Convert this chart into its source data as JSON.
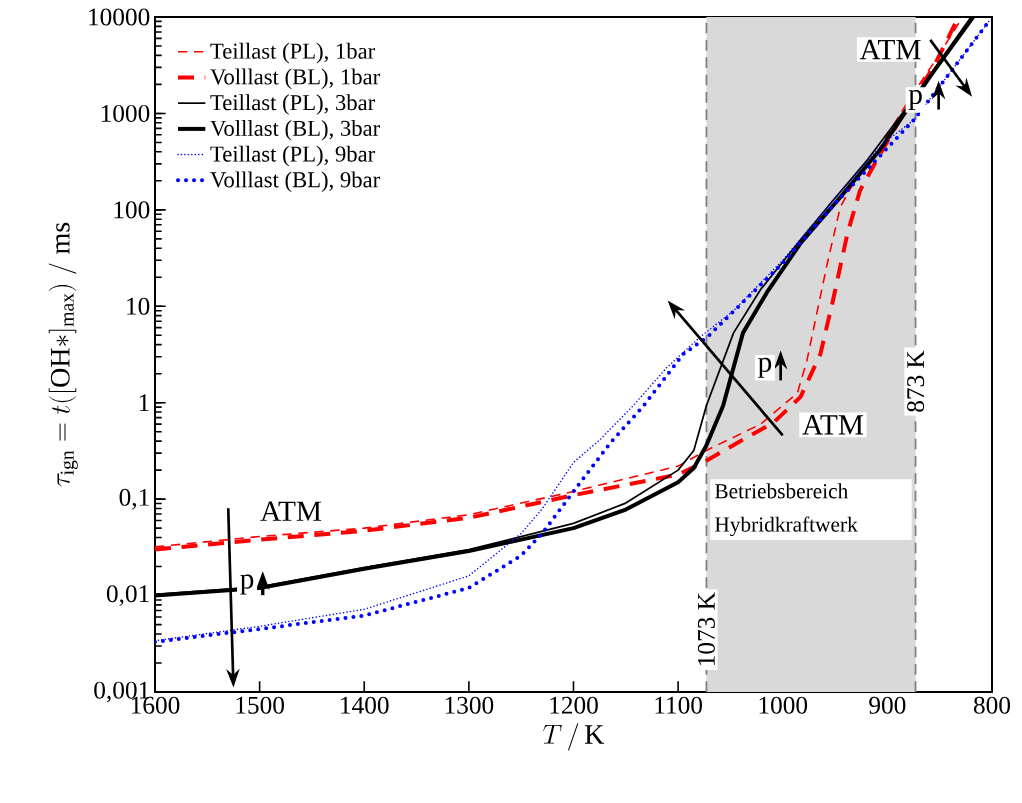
{
  "chart_data": {
    "type": "line",
    "xlabel": "T\\,/\\,\\mathrm{K}",
    "ylabel": "\\tau_{\\mathrm{ign}} = t([\\mathrm{OH*}]_{\\mathrm{max}})\\;/\\;\\mathrm{ms}",
    "xlim": [
      1600,
      800
    ],
    "xticks": [
      1600,
      1500,
      1400,
      1300,
      1200,
      1100,
      1000,
      900,
      800
    ],
    "ylim": [
      0.001,
      10000
    ],
    "yticks": [
      {
        "value": 0.001,
        "label": "0,001"
      },
      {
        "value": 0.01,
        "label": "0,01"
      },
      {
        "value": 0.1,
        "label": "0,1"
      },
      1,
      10,
      100,
      1000,
      10000
    ],
    "log": true,
    "legend": "top left",
    "series": [
      {
        "name": "Teillast (PL), 1bar",
        "color": "#ff0000",
        "line_style": "dashed",
        "x": [
          1600,
          1500,
          1400,
          1300,
          1200,
          1100,
          1073,
          1021,
          986,
          977,
          958,
          945,
          929,
          910,
          881,
          856,
          828
        ],
        "values": [
          0.032,
          0.041,
          0.05,
          0.069,
          0.12,
          0.22,
          0.32,
          0.6,
          1.26,
          2.7,
          26,
          107,
          220,
          390,
          1300,
          3300,
          10000
        ]
      },
      {
        "name": "Volllast (BL), 1bar",
        "color": "#ff0000",
        "line_style": "dashed",
        "x": [
          1600,
          1500,
          1400,
          1300,
          1200,
          1100,
          1073,
          1044,
          1009,
          983,
          964,
          952,
          938,
          926,
          910,
          881,
          856,
          832
        ],
        "values": [
          0.03,
          0.038,
          0.047,
          0.064,
          0.11,
          0.18,
          0.25,
          0.38,
          0.62,
          1.15,
          3.2,
          11.5,
          58,
          160,
          330,
          1170,
          3000,
          10000
        ]
      },
      {
        "name": "Teillast (PL), 3bar",
        "color": "#000000",
        "line_style": "solid",
        "x": [
          1600,
          1500,
          1400,
          1300,
          1200,
          1150,
          1100,
          1085,
          1073,
          1047,
          1021,
          983,
          952,
          919,
          881,
          856,
          820
        ],
        "values": [
          0.0103,
          0.0123,
          0.0195,
          0.03,
          0.056,
          0.091,
          0.2,
          0.32,
          0.93,
          5.3,
          15,
          49,
          125,
          330,
          1170,
          2800,
          10000
        ]
      },
      {
        "name": "Volllast (BL), 3bar",
        "color": "#000000",
        "line_style": "solid",
        "x": [
          1600,
          1500,
          1400,
          1300,
          1200,
          1150,
          1100,
          1085,
          1073,
          1057,
          1038,
          1015,
          983,
          945,
          907,
          881,
          856,
          818
        ],
        "values": [
          0.01,
          0.012,
          0.019,
          0.029,
          0.05,
          0.078,
          0.15,
          0.21,
          0.36,
          0.93,
          5.3,
          14,
          45,
          135,
          420,
          1100,
          2700,
          10000
        ]
      },
      {
        "name": "Teillast (PL), 9bar",
        "color": "#0000ff",
        "line_style": "dotted",
        "x": [
          1600,
          1500,
          1400,
          1300,
          1250,
          1230,
          1200,
          1175,
          1143,
          1111,
          1079,
          1047,
          1000,
          952,
          904,
          875,
          843,
          802
        ],
        "values": [
          0.0034,
          0.0048,
          0.0072,
          0.016,
          0.044,
          0.079,
          0.24,
          0.41,
          0.93,
          2.3,
          4.8,
          9,
          30,
          125,
          490,
          850,
          2400,
          9300
        ]
      },
      {
        "name": "Volllast (BL), 9bar",
        "color": "#0000ff",
        "line_style": "dotted",
        "x": [
          1600,
          1500,
          1400,
          1300,
          1250,
          1230,
          1200,
          1165,
          1133,
          1095,
          1072,
          1000,
          952,
          875,
          843,
          802
        ],
        "values": [
          0.0033,
          0.0045,
          0.0062,
          0.012,
          0.026,
          0.044,
          0.12,
          0.38,
          0.93,
          3.2,
          4.8,
          28,
          110,
          850,
          2400,
          9300
        ]
      }
    ],
    "ref_lines": [
      {
        "axis": "x",
        "value": 1073,
        "label": "1073 K",
        "color": "#808080",
        "line_style": "dashed"
      },
      {
        "axis": "x",
        "value": 873,
        "label": "873 K",
        "color": "#808080",
        "line_style": "dashed"
      }
    ],
    "bands": [
      {
        "axis": "x",
        "from": 1073,
        "to": 873,
        "label": "Betriebsbereich Hybridkraftwerk",
        "color": "#d9d9d9"
      }
    ],
    "annotations": [
      "ATM",
      "p",
      "ATM",
      "p",
      "ATM",
      "p"
    ]
  }
}
